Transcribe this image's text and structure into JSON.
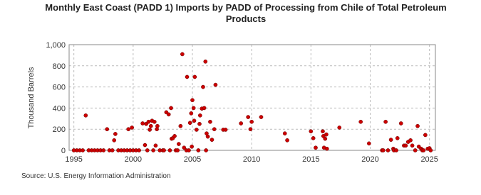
{
  "chart_data": {
    "type": "scatter",
    "title": "Monthly East Coast (PADD 1) Imports by PADD of Processing from Chile of Total Petroleum Products",
    "y_label": "Thousand Barrels",
    "source": "Source: U.S. Energy Information Administration",
    "color": "#cc0000",
    "grid": true,
    "xlim": [
      1994.6,
      2025.5
    ],
    "ylim": [
      0,
      1000
    ],
    "xticks": [
      1995,
      2000,
      2005,
      2010,
      2015,
      2020,
      2025
    ],
    "yticks": [
      0,
      200,
      400,
      600,
      800,
      {
        "value": 1000,
        "label": "1,000"
      }
    ],
    "x": [
      1996.0,
      1997.8,
      1998.4,
      1998.5,
      1999.6,
      1999.9,
      2000.8,
      2001.0,
      2001.1,
      2001.3,
      2001.4,
      2001.5,
      2001.6,
      2001.8,
      2001.9,
      2002.0,
      2002.05,
      2002.8,
      2003.0,
      2003.2,
      2003.25,
      2003.35,
      2003.5,
      2003.85,
      2004.0,
      2004.15,
      2004.3,
      2004.55,
      2004.8,
      2004.9,
      2004.95,
      2005.0,
      2005.1,
      2005.15,
      2005.2,
      2005.35,
      2005.6,
      2005.65,
      2005.8,
      2005.9,
      2006.0,
      2006.1,
      2006.2,
      2006.3,
      2006.5,
      2006.65,
      2006.85,
      2006.95,
      2007.6,
      2007.8,
      2009.1,
      2009.7,
      2009.9,
      2010.0,
      2010.8,
      2012.8,
      2013.0,
      2015.0,
      2015.2,
      2015.4,
      2016.0,
      2016.05,
      2016.1,
      2016.2,
      2016.3,
      2016.35,
      2017.4,
      2019.2,
      2019.9,
      2021.3,
      2021.75,
      2021.95,
      2022.3,
      2022.6,
      2022.85,
      2023.0,
      2023.2,
      2023.4,
      2023.55,
      2024.0,
      2024.1,
      2024.3,
      2024.65,
      2024.85,
      2025.0,
      1995.0,
      1995.25,
      1995.5,
      1995.75,
      1996.25,
      1996.5,
      1996.75,
      1997.0,
      1997.25,
      1997.5,
      1998.0,
      1998.25,
      1998.75,
      1999.0,
      1999.25,
      1999.5,
      1999.75,
      2000.0,
      2000.25,
      2000.5,
      2001.2,
      2001.7,
      2002.25,
      2002.5,
      2002.6,
      2003.1,
      2003.6,
      2003.75,
      2004.5,
      2004.7,
      2005.5,
      2006.15,
      2021.0,
      2021.1,
      2021.5,
      2022.0,
      2022.2,
      2023.8,
      2024.4,
      2024.5,
      2025.1
    ],
    "values": [
      330,
      200,
      95,
      155,
      200,
      215,
      255,
      50,
      250,
      270,
      195,
      230,
      280,
      270,
      45,
      200,
      230,
      360,
      340,
      400,
      110,
      115,
      135,
      60,
      230,
      910,
      25,
      695,
      260,
      350,
      35,
      475,
      400,
      280,
      695,
      195,
      250,
      330,
      395,
      600,
      400,
      840,
      160,
      130,
      270,
      100,
      200,
      620,
      195,
      195,
      255,
      315,
      200,
      270,
      315,
      160,
      95,
      180,
      115,
      25,
      180,
      135,
      25,
      110,
      150,
      15,
      215,
      270,
      65,
      270,
      100,
      15,
      115,
      255,
      45,
      45,
      80,
      95,
      45,
      230,
      35,
      15,
      145,
      15,
      20,
      0,
      0,
      0,
      0,
      0,
      0,
      0,
      0,
      0,
      0,
      0,
      0,
      0,
      0,
      0,
      0,
      0,
      0,
      0,
      0,
      0,
      0,
      0,
      0,
      0,
      0,
      0,
      0,
      0,
      0,
      0,
      0,
      0,
      0,
      0,
      0,
      0,
      0,
      0,
      0,
      0
    ]
  }
}
